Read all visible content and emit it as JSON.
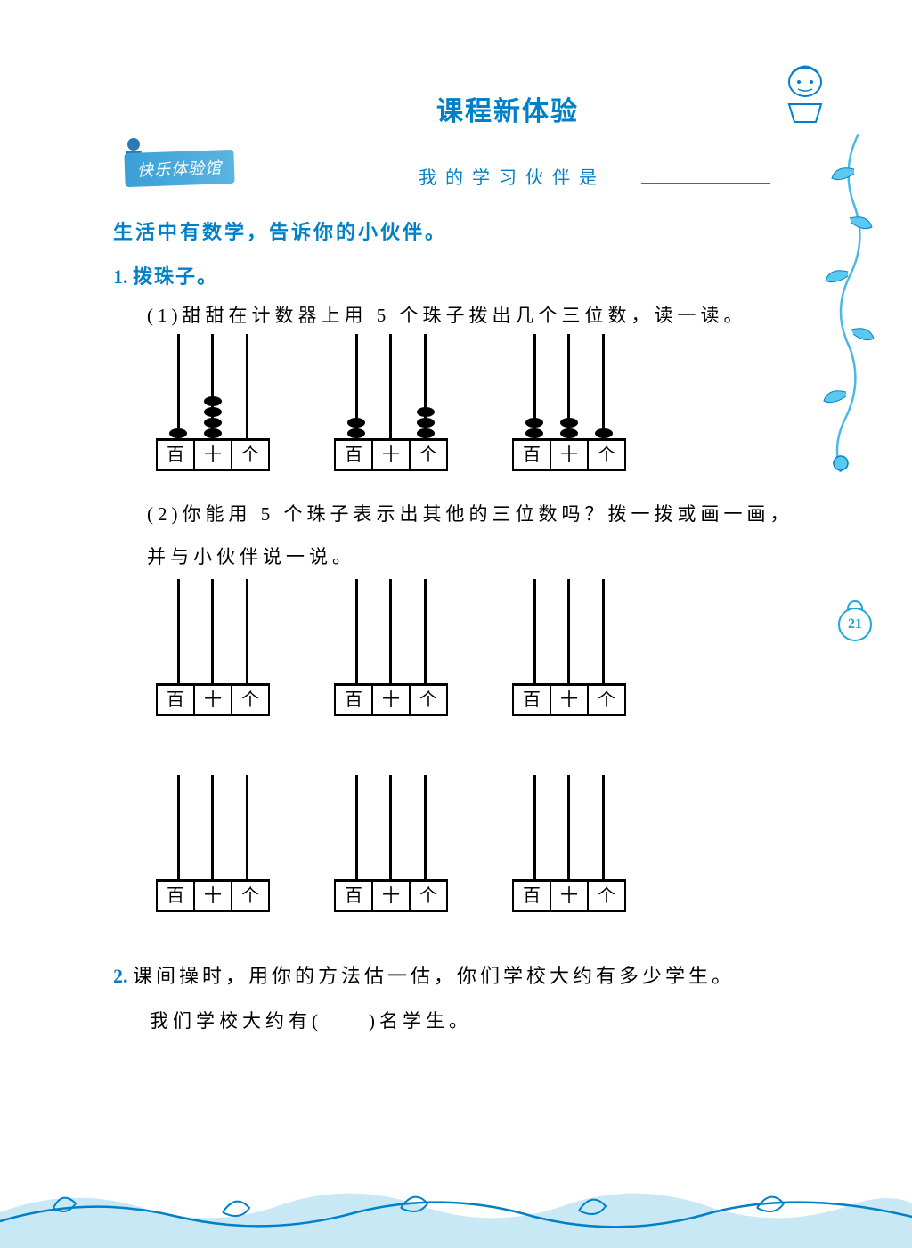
{
  "header": {
    "title": "课程新体验"
  },
  "badge": {
    "text": "快乐体验馆"
  },
  "partner": {
    "label": "我的学习伙伴是"
  },
  "intro": "生活中有数学，告诉你的小伙伴。",
  "q1": {
    "num": "1.",
    "title": "拨珠子。",
    "a": "(1)甜甜在计数器上用 5 个珠子拨出几个三位数，读一读。",
    "b": "(2)你能用 5 个珠子表示出其他的三位数吗？拨一拨或画一画，",
    "b2": "并与小伙伴说一说。"
  },
  "q2": {
    "num": "2.",
    "text": "课间操时，用你的方法估一估，你们学校大约有多少学生。",
    "line2": "我们学校大约有(　　)名学生。"
  },
  "abacus_labels": {
    "h": "百",
    "t": "十",
    "o": "个"
  },
  "abaci_row1": [
    {
      "beads": [
        1,
        4,
        0
      ]
    },
    {
      "beads": [
        2,
        0,
        3
      ]
    },
    {
      "beads": [
        2,
        2,
        1
      ]
    }
  ],
  "abaci_empty": [
    [
      0,
      0,
      0
    ],
    [
      0,
      0,
      0
    ],
    [
      0,
      0,
      0
    ]
  ],
  "page_number": "21",
  "colors": {
    "primary": "#0080c8",
    "accent": "#20a8d8",
    "text": "#000000",
    "bg": "#ffffff"
  }
}
